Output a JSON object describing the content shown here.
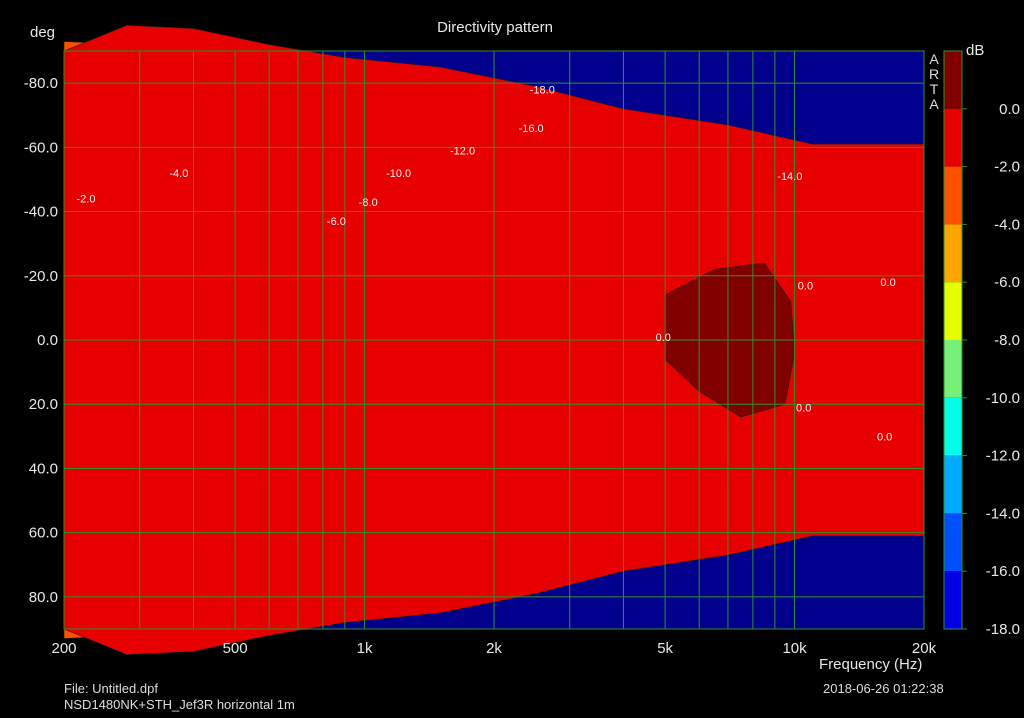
{
  "chart_data": {
    "type": "heatmap",
    "title": "Directivity pattern",
    "ylabel": "deg",
    "xlabel": "Frequency (Hz)",
    "colorbar_label": "dB",
    "brand": "ARTA",
    "x_scale": "log",
    "xlim": [
      200,
      20000
    ],
    "ylim": [
      -90,
      90
    ],
    "y_inverted": true,
    "clim": [
      -18,
      0
    ],
    "grid": true,
    "x_ticks": [
      {
        "value": 200,
        "label": "200"
      },
      {
        "value": 500,
        "label": "500"
      },
      {
        "value": 1000,
        "label": "1k"
      },
      {
        "value": 2000,
        "label": "2k"
      },
      {
        "value": 5000,
        "label": "5k"
      },
      {
        "value": 10000,
        "label": "10k"
      },
      {
        "value": 20000,
        "label": "20k"
      }
    ],
    "y_ticks": [
      -80,
      -60,
      -40,
      -20,
      0,
      20,
      40,
      60,
      80
    ],
    "y_tick_labels": [
      "-80.0",
      "-60.0",
      "-40.0",
      "-20.0",
      "0.0",
      "20.0",
      "40.0",
      "60.0",
      "80.0"
    ],
    "colorbar": [
      {
        "value": 0,
        "label": "0.0",
        "color": "#800000"
      },
      {
        "value": -2,
        "label": "-2.0",
        "color": "#e60000"
      },
      {
        "value": -4,
        "label": "-4.0",
        "color": "#ff5000"
      },
      {
        "value": -6,
        "label": "-6.0",
        "color": "#ffa500"
      },
      {
        "value": -8,
        "label": "-8.0",
        "color": "#e6ff00"
      },
      {
        "value": -10,
        "label": "-10.0",
        "color": "#78f078"
      },
      {
        "value": -12,
        "label": "-12.0",
        "color": "#00ffe6"
      },
      {
        "value": -14,
        "label": "-14.0",
        "color": "#00aaff"
      },
      {
        "value": -16,
        "label": "-16.0",
        "color": "#0050ff"
      },
      {
        "value": -18,
        "label": "-18.0",
        "color": "#0000e6"
      }
    ],
    "below_min_color": "#00008c",
    "beamwidth_db_per_level": [
      {
        "freq": 200,
        "angles": [
          -90,
          93,
          90,
          86,
          80,
          70,
          59,
          50,
          38
        ]
      },
      {
        "freq": 280,
        "angles": [
          98,
          92,
          83,
          80,
          76,
          72,
          60,
          51,
          50
        ]
      },
      {
        "freq": 400,
        "angles": [
          97,
          91,
          81,
          75,
          72,
          68,
          60,
          50,
          44
        ]
      },
      {
        "freq": 600,
        "angles": [
          92,
          86,
          75,
          70,
          66,
          61,
          54,
          45,
          36
        ]
      },
      {
        "freq": 900,
        "angles": [
          88,
          79,
          72,
          67,
          62,
          58,
          51,
          42,
          29
        ]
      },
      {
        "freq": 1500,
        "angles": [
          85,
          77,
          69,
          63,
          58,
          53,
          47,
          38,
          24
        ]
      },
      {
        "freq": 2500,
        "angles": [
          79,
          72,
          65,
          59,
          55,
          50,
          44,
          36,
          21
        ]
      },
      {
        "freq": 4000,
        "angles": [
          72,
          64,
          59,
          55,
          51,
          47,
          43,
          35,
          21
        ]
      },
      {
        "freq": 7000,
        "angles": [
          67,
          62,
          58,
          54,
          50,
          46,
          41,
          34,
          22
        ]
      },
      {
        "freq": 11000,
        "angles": [
          61,
          56,
          52,
          48,
          44,
          41,
          36,
          29,
          15
        ]
      }
    ],
    "contour_labels": [
      {
        "freq": 225,
        "deg": -44,
        "label": "-2.0"
      },
      {
        "freq": 370,
        "deg": -52,
        "label": "-4.0"
      },
      {
        "freq": 860,
        "deg": -37,
        "label": "-6.0"
      },
      {
        "freq": 1020,
        "deg": -43,
        "label": "-8.0"
      },
      {
        "freq": 1200,
        "deg": -52,
        "label": "-10.0"
      },
      {
        "freq": 1690,
        "deg": -59,
        "label": "-12.0"
      },
      {
        "freq": 2440,
        "deg": -66,
        "label": "-16.0"
      },
      {
        "freq": 2590,
        "deg": -78,
        "label": "-18.0"
      },
      {
        "freq": 9750,
        "deg": -51,
        "label": "-14.0"
      },
      {
        "freq": 4950,
        "deg": -1,
        "label": "0.0"
      },
      {
        "freq": 10600,
        "deg": -17,
        "label": "0.0"
      },
      {
        "freq": 10500,
        "deg": 21,
        "label": "0.0"
      },
      {
        "freq": 16500,
        "deg": -18,
        "label": "0.0"
      },
      {
        "freq": 16200,
        "deg": 30,
        "label": "0.0"
      }
    ]
  },
  "footer": {
    "file": "File: Untitled.dpf",
    "description": "NSD1480NK+STH_Jef3R horizontal 1m",
    "date": "2018-06-26  01:22:38"
  }
}
